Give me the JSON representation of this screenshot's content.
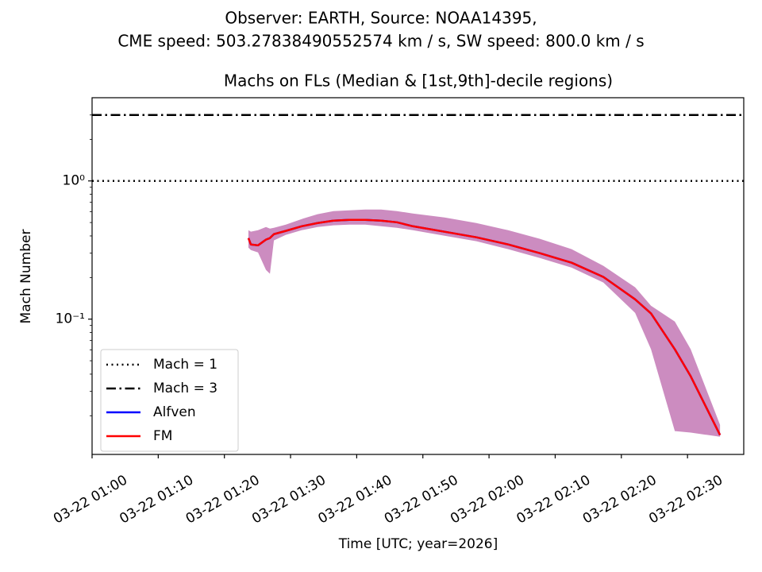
{
  "chart_data": {
    "type": "line",
    "suptitle": [
      "Observer: EARTH, Source: NOAA14395,",
      "CME speed: 503.27838490552574 km / s, SW speed: 800.0 km / s"
    ],
    "title": "Machs on FLs (Median & [1st,9th]-decile regions)",
    "xlabel": "Time [UTC; year=2026]",
    "ylabel": "Mach Number",
    "log_y": true,
    "legend_loc": "lower left",
    "x": [
      "2026-03-22T01:23:38",
      "2026-03-22T01:24:00",
      "2026-03-22T01:25:05",
      "2026-03-22T01:26:17",
      "2026-03-22T01:26:53",
      "2026-03-22T01:27:29",
      "2026-03-22T01:29:17",
      "2026-03-22T01:31:41",
      "2026-03-22T01:34:05",
      "2026-03-22T01:36:29",
      "2026-03-22T01:38:53",
      "2026-03-22T01:41:17",
      "2026-03-22T01:43:41",
      "2026-03-22T01:46:05",
      "2026-03-22T01:48:29",
      "2026-03-22T01:53:17",
      "2026-03-22T01:58:05",
      "2026-03-22T02:02:53",
      "2026-03-22T02:07:41",
      "2026-03-22T02:12:29",
      "2026-03-22T02:17:17",
      "2026-03-22T02:22:05",
      "2026-03-22T02:24:29",
      "2026-03-22T02:28:05",
      "2026-03-22T02:30:29",
      "2026-03-22T02:34:55"
    ],
    "band": {
      "color": "#cc8cc0",
      "upper": [
        0.44,
        0.429,
        0.44,
        0.464,
        0.452,
        0.458,
        0.483,
        0.53,
        0.574,
        0.605,
        0.613,
        0.621,
        0.621,
        0.605,
        0.581,
        0.544,
        0.496,
        0.44,
        0.381,
        0.321,
        0.243,
        0.17,
        0.125,
        0.0961,
        0.0605,
        0.0172
      ],
      "lower": [
        0.329,
        0.316,
        0.304,
        0.227,
        0.213,
        0.371,
        0.407,
        0.44,
        0.464,
        0.477,
        0.483,
        0.483,
        0.47,
        0.458,
        0.44,
        0.401,
        0.366,
        0.321,
        0.277,
        0.236,
        0.184,
        0.111,
        0.0605,
        0.0155,
        0.0151,
        0.0141
      ]
    },
    "series": [
      {
        "name": "Alfven",
        "color": "#0000ff",
        "values": [
          0.386,
          0.347,
          0.342,
          0.376,
          0.386,
          0.412,
          0.435,
          0.47,
          0.496,
          0.516,
          0.523,
          0.523,
          0.516,
          0.502,
          0.47,
          0.429,
          0.391,
          0.347,
          0.3,
          0.256,
          0.202,
          0.139,
          0.11,
          0.0605,
          0.0386,
          0.0145
        ]
      },
      {
        "name": "FM",
        "color": "#ff0000",
        "values": [
          0.386,
          0.347,
          0.342,
          0.376,
          0.386,
          0.412,
          0.435,
          0.47,
          0.496,
          0.516,
          0.523,
          0.523,
          0.516,
          0.502,
          0.47,
          0.429,
          0.391,
          0.347,
          0.3,
          0.256,
          0.202,
          0.139,
          0.11,
          0.0605,
          0.0386,
          0.0145
        ]
      }
    ],
    "hlines": [
      {
        "name": "Mach = 1",
        "value": 1,
        "style": "dotted",
        "color": "#000000"
      },
      {
        "name": "Mach = 3",
        "value": 3,
        "style": "dashdot",
        "color": "#000000"
      }
    ],
    "xlim": [
      "2026-03-22T01:00:00",
      "2026-03-22T02:38:30"
    ],
    "xticks": [
      {
        "value": "2026-03-22T01:00:00",
        "label": "03-22 01:00"
      },
      {
        "value": "2026-03-22T01:10:00",
        "label": "03-22 01:10"
      },
      {
        "value": "2026-03-22T01:20:00",
        "label": "03-22 01:20"
      },
      {
        "value": "2026-03-22T01:30:00",
        "label": "03-22 01:30"
      },
      {
        "value": "2026-03-22T01:40:00",
        "label": "03-22 01:40"
      },
      {
        "value": "2026-03-22T01:50:00",
        "label": "03-22 01:50"
      },
      {
        "value": "2026-03-22T02:00:00",
        "label": "03-22 02:00"
      },
      {
        "value": "2026-03-22T02:10:00",
        "label": "03-22 02:10"
      },
      {
        "value": "2026-03-22T02:20:00",
        "label": "03-22 02:20"
      },
      {
        "value": "2026-03-22T02:30:00",
        "label": "03-22 02:30"
      }
    ],
    "ylim": [
      0.0105,
      4.0
    ],
    "yticks": [
      {
        "value": 1,
        "label": "10⁰"
      },
      {
        "value": 0.1,
        "label": "10⁻¹"
      }
    ],
    "yminorticks": [
      0.02,
      0.03,
      0.04,
      0.05,
      0.06,
      0.07,
      0.08,
      0.09,
      0.2,
      0.3,
      0.4,
      0.5,
      0.6,
      0.7,
      0.8,
      0.9,
      2,
      3
    ]
  }
}
